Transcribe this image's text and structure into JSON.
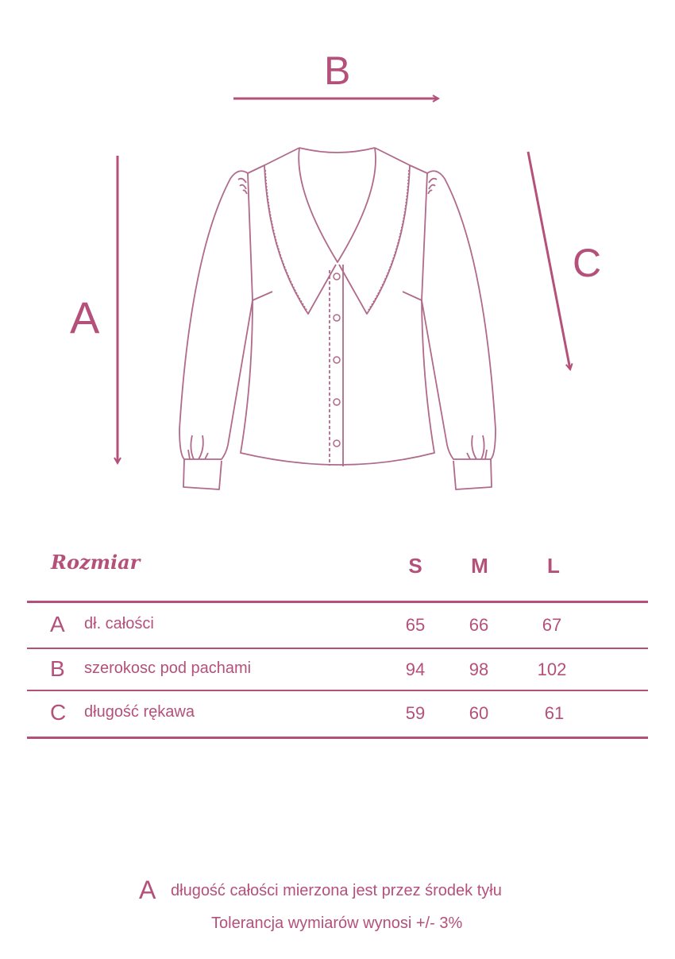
{
  "diagram": {
    "labels": {
      "a": "A",
      "b": "B",
      "c": "C"
    },
    "line_color": "#b06a8a",
    "arrow_color": "#b5507a"
  },
  "table": {
    "title": "Rozmiar",
    "sizes": [
      "S",
      "M",
      "L"
    ],
    "rows": [
      {
        "letter": "A",
        "label": "dł. całości",
        "values": [
          "65",
          "66",
          "67"
        ]
      },
      {
        "letter": "B",
        "label": "szerokosc pod pachami",
        "values": [
          "94",
          "98",
          "102"
        ]
      },
      {
        "letter": "C",
        "label": "długość rękawa",
        "values": [
          "59",
          "60",
          "61"
        ]
      }
    ]
  },
  "footer": {
    "letter": "A",
    "note": "długość całości mierzona jest przez środek tyłu",
    "tolerance": "Tolerancja wymiarów wynosi +/- 3%"
  },
  "accent_color": "#b5507a"
}
